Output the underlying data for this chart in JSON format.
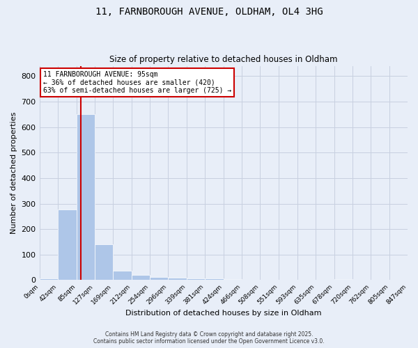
{
  "title_line1": "11, FARNBOROUGH AVENUE, OLDHAM, OL4 3HG",
  "title_line2": "Size of property relative to detached houses in Oldham",
  "xlabel": "Distribution of detached houses by size in Oldham",
  "ylabel": "Number of detached properties",
  "bin_edges": [
    0,
    42,
    85,
    127,
    169,
    212,
    254,
    296,
    339,
    381,
    424,
    466,
    508,
    551,
    593,
    635,
    678,
    720,
    762,
    805,
    847
  ],
  "bar_values": [
    8,
    278,
    650,
    140,
    38,
    20,
    12,
    10,
    8,
    6,
    5,
    0,
    0,
    0,
    0,
    0,
    3,
    0,
    0,
    0
  ],
  "bar_color": "#aec6e8",
  "ylim": [
    0,
    840
  ],
  "yticks": [
    0,
    100,
    200,
    300,
    400,
    500,
    600,
    700,
    800
  ],
  "red_line_x": 95,
  "annotation_title": "11 FARNBOROUGH AVENUE: 95sqm",
  "annotation_line2": "← 36% of detached houses are smaller (420)",
  "annotation_line3": "63% of semi-detached houses are larger (725) →",
  "annotation_box_color": "#ffffff",
  "annotation_box_edge": "#cc0000",
  "red_line_color": "#cc0000",
  "grid_color": "#c8d0e0",
  "background_color": "#e8eef8",
  "footer_line1": "Contains HM Land Registry data © Crown copyright and database right 2025.",
  "footer_line2": "Contains public sector information licensed under the Open Government Licence v3.0."
}
